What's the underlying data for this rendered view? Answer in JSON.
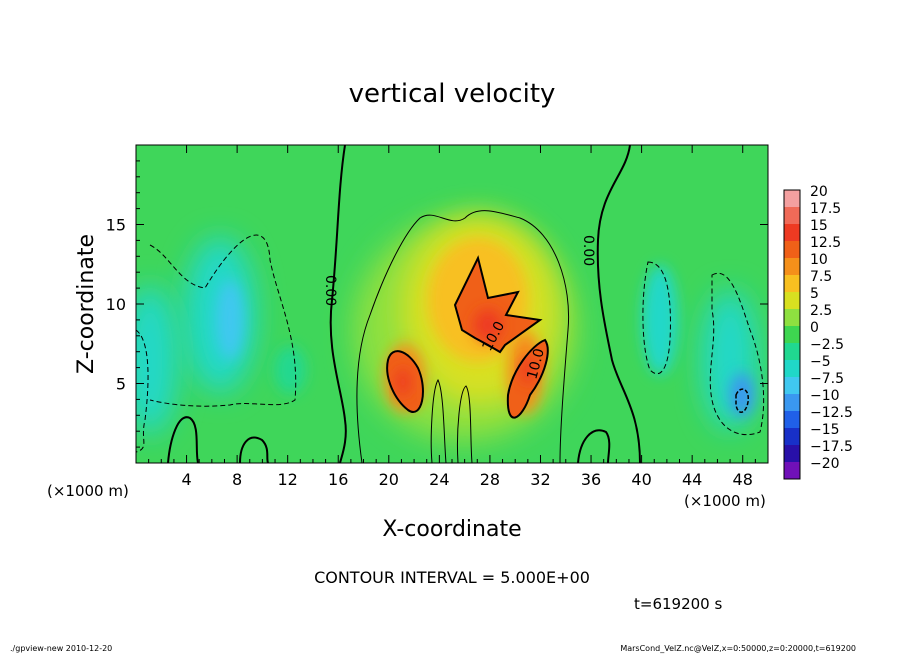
{
  "chart_data": {
    "type": "heatmap",
    "title": "vertical velocity",
    "xlabel": "X-coordinate",
    "ylabel": "Z-coordinate",
    "x_unit": "(×1000 m)",
    "xlim": [
      0,
      50
    ],
    "ylim": [
      0,
      20
    ],
    "xticks": [
      4,
      8,
      12,
      16,
      20,
      24,
      28,
      32,
      36,
      40,
      44,
      48
    ],
    "yticks": [
      5,
      10,
      15
    ],
    "colorbar": {
      "levels": [
        20,
        17.5,
        15,
        12.5,
        10,
        7.5,
        5,
        2.5,
        0,
        -2.5,
        -5,
        -7.5,
        -10,
        -12.5,
        -15,
        -17.5,
        -20
      ],
      "labels": [
        "20",
        "17.5",
        "15",
        "12.5",
        "10",
        "7.5",
        "5",
        "2.5",
        "0",
        "−2.5",
        "−5",
        "−7.5",
        "−10",
        "−12.5",
        "−15",
        "−17.5",
        "−20"
      ],
      "colors": [
        "#f4a0a0",
        "#f06a58",
        "#ee3a22",
        "#f06018",
        "#f5901a",
        "#f8c020",
        "#d8e020",
        "#8ee040",
        "#3ed650",
        "#20d890",
        "#20d8c8",
        "#40c8f0",
        "#3a98f0",
        "#2060e8",
        "#1830c8",
        "#2810a8",
        "#7010b8"
      ]
    },
    "contour_labels": [
      "0.00",
      "0.00",
      "10.0",
      "10.0"
    ],
    "annotations": {
      "contour_interval": "CONTOUR INTERVAL = 5.000E+00",
      "time": "t=619200 s",
      "footer_left": "./gpview-new  2010-12-20",
      "footer_right": "MarsCond_VelZ.nc@VelZ,x=0:50000,z=0:20000,t=619200"
    },
    "features": [
      {
        "x": 22,
        "z": 5.5,
        "value": 15
      },
      {
        "x": 28,
        "z": 9,
        "value": 17
      },
      {
        "x": 31,
        "z": 5.5,
        "value": 15
      },
      {
        "x": 8,
        "z": 9,
        "value": -6
      },
      {
        "x": 2,
        "z": 7,
        "value": -5
      },
      {
        "x": 48,
        "z": 4,
        "value": -10
      },
      {
        "x": 41,
        "z": 9,
        "value": -4
      }
    ]
  }
}
